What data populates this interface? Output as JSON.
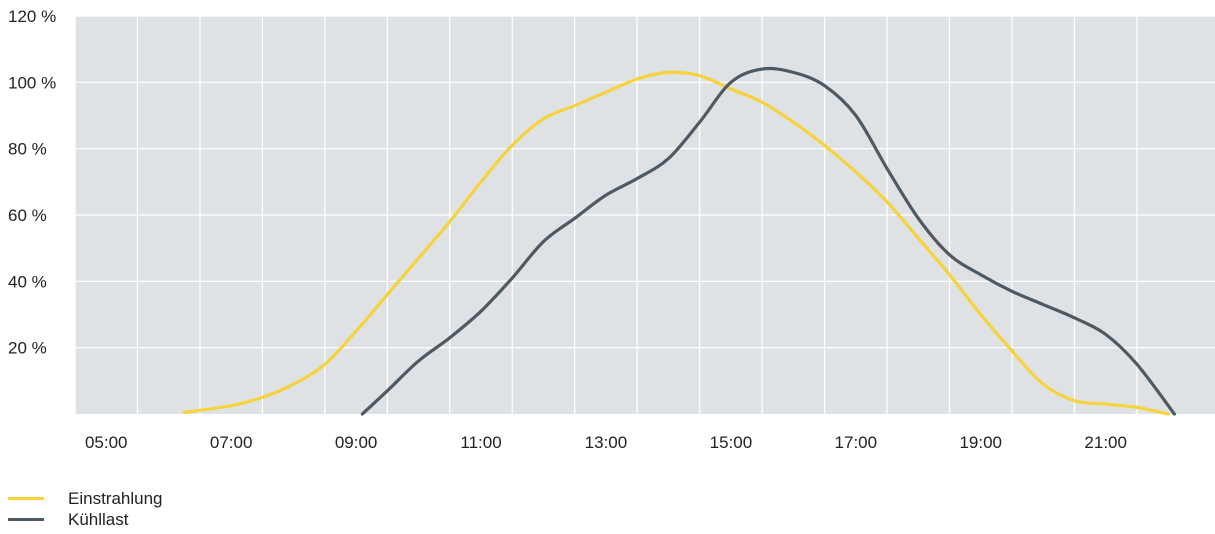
{
  "chart_data": {
    "type": "line",
    "title": "",
    "xlabel": "",
    "ylabel": "",
    "x_ticks": [
      "05:00",
      "07:00",
      "09:00",
      "11:00",
      "13:00",
      "15:00",
      "17:00",
      "19:00",
      "21:00"
    ],
    "y_ticks": [
      "20 %",
      "40 %",
      "60 %",
      "80 %",
      "100 %",
      "120 %"
    ],
    "xlim": [
      4.0,
      22.25
    ],
    "ylim": [
      0,
      120
    ],
    "grid": true,
    "legend_position": "bottom-left",
    "series": [
      {
        "name": "Einstrahlung",
        "color": "#f6d33c",
        "points": [
          [
            5.75,
            0.5
          ],
          [
            6.5,
            2.5
          ],
          [
            7.0,
            5
          ],
          [
            7.5,
            9
          ],
          [
            8.0,
            15
          ],
          [
            8.5,
            25
          ],
          [
            9.0,
            36
          ],
          [
            9.5,
            47
          ],
          [
            10.0,
            58
          ],
          [
            10.5,
            70
          ],
          [
            11.0,
            81
          ],
          [
            11.5,
            89
          ],
          [
            12.0,
            93
          ],
          [
            12.5,
            97
          ],
          [
            13.0,
            101
          ],
          [
            13.5,
            103
          ],
          [
            14.0,
            102
          ],
          [
            14.5,
            98
          ],
          [
            15.0,
            94
          ],
          [
            15.5,
            88
          ],
          [
            16.0,
            81
          ],
          [
            16.5,
            73
          ],
          [
            17.0,
            64
          ],
          [
            17.5,
            53
          ],
          [
            18.0,
            42
          ],
          [
            18.5,
            30
          ],
          [
            19.0,
            19
          ],
          [
            19.5,
            9
          ],
          [
            20.0,
            4
          ],
          [
            20.5,
            3
          ],
          [
            21.0,
            2
          ],
          [
            21.5,
            0
          ]
        ]
      },
      {
        "name": "Kühllast",
        "color": "#4d5963",
        "points": [
          [
            8.6,
            0
          ],
          [
            9.0,
            7
          ],
          [
            9.5,
            16
          ],
          [
            10.0,
            23
          ],
          [
            10.5,
            31
          ],
          [
            11.0,
            41
          ],
          [
            11.5,
            52
          ],
          [
            12.0,
            59
          ],
          [
            12.5,
            66
          ],
          [
            13.0,
            71
          ],
          [
            13.5,
            77
          ],
          [
            14.0,
            88
          ],
          [
            14.5,
            100
          ],
          [
            15.0,
            104
          ],
          [
            15.5,
            103
          ],
          [
            16.0,
            99
          ],
          [
            16.5,
            90
          ],
          [
            17.0,
            74
          ],
          [
            17.5,
            59
          ],
          [
            18.0,
            48
          ],
          [
            18.5,
            42
          ],
          [
            19.0,
            37
          ],
          [
            19.5,
            33
          ],
          [
            20.0,
            29
          ],
          [
            20.5,
            24
          ],
          [
            21.0,
            15
          ],
          [
            21.6,
            0
          ]
        ]
      }
    ]
  }
}
